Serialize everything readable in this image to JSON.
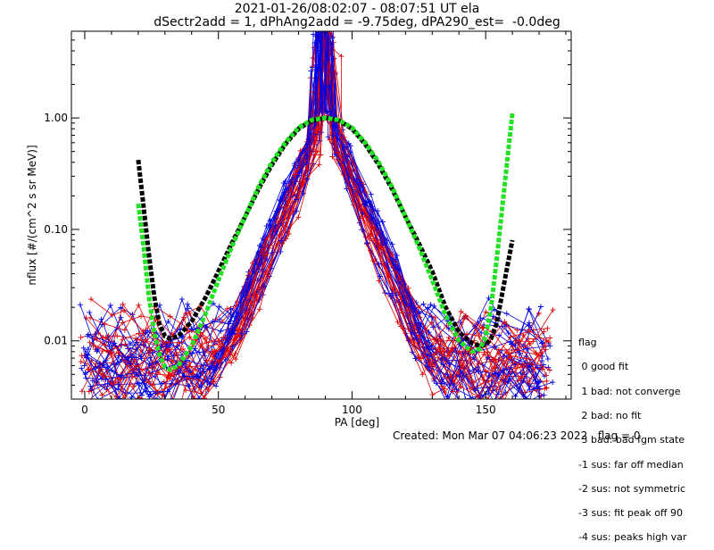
{
  "header": {
    "title": "2021-01-26/08:02:07 - 08:07:51 UT ela",
    "subtitle": "dSectr2add = 1, dPhAng2add = -9.75deg, dPA290_est=  -0.0deg"
  },
  "footer": {
    "created": "Created: Mon Mar 07 04:06:23 2022",
    "flag_value": "flag = 0"
  },
  "flag_legend": {
    "title": "flag",
    "entries": [
      " 0 good fit",
      " 1 bad: not converge",
      " 2 bad: no fit",
      " 3 bad: bad fgm state",
      "-1 sus: far off median",
      "-2 sus: not symmetric",
      "-3 sus: fit peak off 90",
      "-4 sus: peaks high var"
    ]
  },
  "colors": {
    "data_red": "#e00000",
    "data_blue": "#0000e6",
    "fit_green": "#22e022",
    "fit_black": "#000000"
  },
  "chart_data": {
    "type": "line",
    "xlabel": "PA [deg]",
    "ylabel": "nflux [#/(cm^2 s sr MeV)]",
    "xlim": [
      -5,
      182
    ],
    "ylim": [
      0.003,
      6.0
    ],
    "yscale": "log",
    "x_ticks": [
      0,
      50,
      100,
      150
    ],
    "y_ticks": [
      {
        "value": 0.01,
        "label": "0.01"
      },
      {
        "value": 0.1,
        "label": "0.10"
      },
      {
        "value": 1.0,
        "label": "1.00"
      }
    ],
    "grid": false,
    "series": [
      {
        "color": "black",
        "style": "thick dashed",
        "x": [
          20,
          22,
          24,
          26,
          28,
          30,
          32,
          35,
          40,
          45,
          50,
          55,
          60,
          65,
          70,
          75,
          80,
          85,
          90,
          95,
          100,
          105,
          110,
          115,
          120,
          125,
          130,
          135,
          140,
          145,
          148,
          150,
          152,
          154,
          156,
          158,
          160
        ],
        "y": [
          0.42,
          0.16,
          0.06,
          0.025,
          0.014,
          0.011,
          0.0105,
          0.011,
          0.015,
          0.024,
          0.042,
          0.075,
          0.13,
          0.23,
          0.38,
          0.58,
          0.8,
          0.95,
          1.0,
          0.95,
          0.8,
          0.58,
          0.38,
          0.23,
          0.13,
          0.075,
          0.042,
          0.02,
          0.012,
          0.0095,
          0.009,
          0.0092,
          0.0105,
          0.014,
          0.025,
          0.045,
          0.08
        ]
      },
      {
        "color": "green",
        "style": "thick dashed",
        "x": [
          20,
          22,
          24,
          26,
          28,
          30,
          32,
          35,
          40,
          45,
          50,
          55,
          60,
          65,
          70,
          75,
          80,
          85,
          90,
          95,
          100,
          105,
          110,
          115,
          120,
          125,
          130,
          135,
          140,
          145,
          148,
          150,
          152,
          154,
          156,
          158,
          160
        ],
        "y": [
          0.17,
          0.07,
          0.025,
          0.012,
          0.0075,
          0.0058,
          0.0055,
          0.006,
          0.009,
          0.017,
          0.035,
          0.07,
          0.13,
          0.24,
          0.4,
          0.6,
          0.82,
          0.96,
          1.0,
          0.96,
          0.82,
          0.6,
          0.4,
          0.24,
          0.13,
          0.07,
          0.035,
          0.017,
          0.01,
          0.008,
          0.0085,
          0.011,
          0.02,
          0.05,
          0.14,
          0.4,
          1.1
        ]
      }
    ]
  }
}
